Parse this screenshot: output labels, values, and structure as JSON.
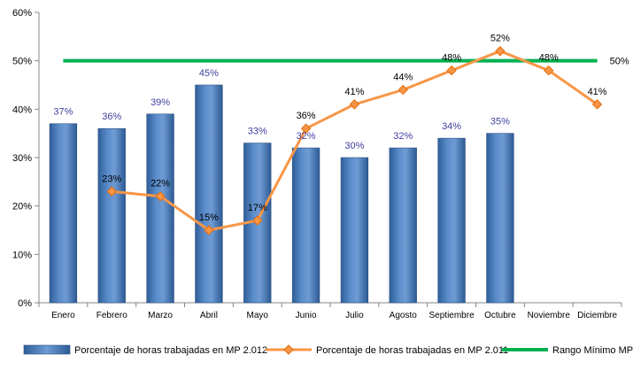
{
  "chart_data": {
    "type": "bar",
    "categories": [
      "Enero",
      "Febrero",
      "Marzo",
      "Abril",
      "Mayo",
      "Junio",
      "Julio",
      "Agosto",
      "Septiembre",
      "Octubre",
      "Noviembre",
      "Diciembre"
    ],
    "ylim": [
      0,
      60
    ],
    "yticks": [
      "0%",
      "10%",
      "20%",
      "30%",
      "40%",
      "50%",
      "60%"
    ],
    "grid": false,
    "legend_position": "bottom",
    "series": [
      {
        "name": "Porcentaje de horas trabajadas en MP 2.012",
        "type": "bar",
        "values": [
          37,
          36,
          39,
          45,
          33,
          32,
          30,
          32,
          34,
          35,
          null,
          null
        ],
        "labels": [
          "37%",
          "36%",
          "39%",
          "45%",
          "33%",
          "32%",
          "30%",
          "32%",
          "34%",
          "35%",
          "",
          ""
        ],
        "color": "#4f81bd"
      },
      {
        "name": "Porcentaje de horas trabajadas en MP 2.011",
        "type": "line",
        "values": [
          null,
          23,
          22,
          15,
          17,
          36,
          41,
          44,
          48,
          52,
          48,
          41
        ],
        "labels": [
          "",
          "23%",
          "22%",
          "15%",
          "17%",
          "36%",
          "41%",
          "44%",
          "48%",
          "52%",
          "48%",
          "41%"
        ],
        "color": "#f79646"
      },
      {
        "name": "Rango Mínimo MP",
        "type": "line",
        "values": [
          50,
          50,
          50,
          50,
          50,
          50,
          50,
          50,
          50,
          50,
          50,
          50
        ],
        "end_label": "50%",
        "color": "#00b050"
      }
    ]
  }
}
